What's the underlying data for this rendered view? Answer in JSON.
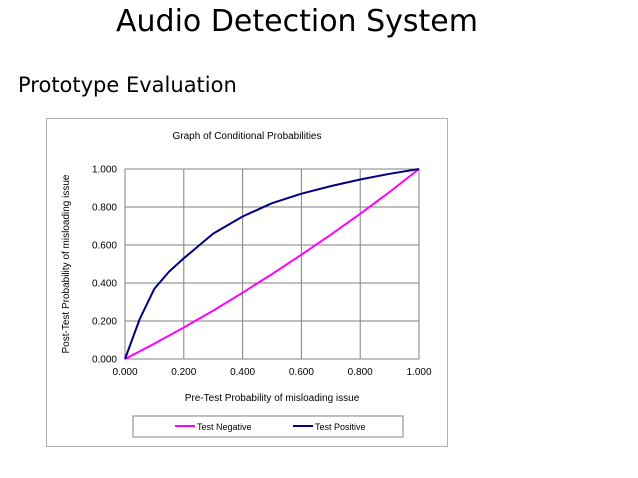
{
  "slide": {
    "title": "Audio Detection System",
    "subtitle": "Prototype Evaluation"
  },
  "chart_data": {
    "type": "line",
    "title": "Graph of Conditional Probabilities",
    "xlabel": "Pre-Test Probability of misloading issue",
    "ylabel": "Post-Test Probability of misloading issue",
    "xlim": [
      0,
      1
    ],
    "ylim": [
      0,
      1
    ],
    "x_ticks": [
      "0.000",
      "0.200",
      "0.400",
      "0.600",
      "0.800",
      "1.000"
    ],
    "y_ticks": [
      "0.000",
      "0.200",
      "0.400",
      "0.600",
      "0.800",
      "1.000"
    ],
    "grid": true,
    "legend_position": "bottom",
    "series": [
      {
        "name": "Test Negative",
        "color": "#ff00ff",
        "x": [
          0,
          0.1,
          0.2,
          0.3,
          0.4,
          0.5,
          0.6,
          0.7,
          0.8,
          0.9,
          1.0
        ],
        "y": [
          0,
          0.081,
          0.166,
          0.255,
          0.349,
          0.447,
          0.549,
          0.654,
          0.764,
          0.879,
          1.0
        ]
      },
      {
        "name": "Test Positive",
        "color": "#000080",
        "x": [
          0,
          0.05,
          0.1,
          0.15,
          0.2,
          0.3,
          0.4,
          0.5,
          0.6,
          0.7,
          0.8,
          0.9,
          1.0
        ],
        "y": [
          0,
          0.21,
          0.37,
          0.46,
          0.53,
          0.66,
          0.75,
          0.82,
          0.87,
          0.91,
          0.945,
          0.975,
          1.0
        ]
      }
    ]
  }
}
